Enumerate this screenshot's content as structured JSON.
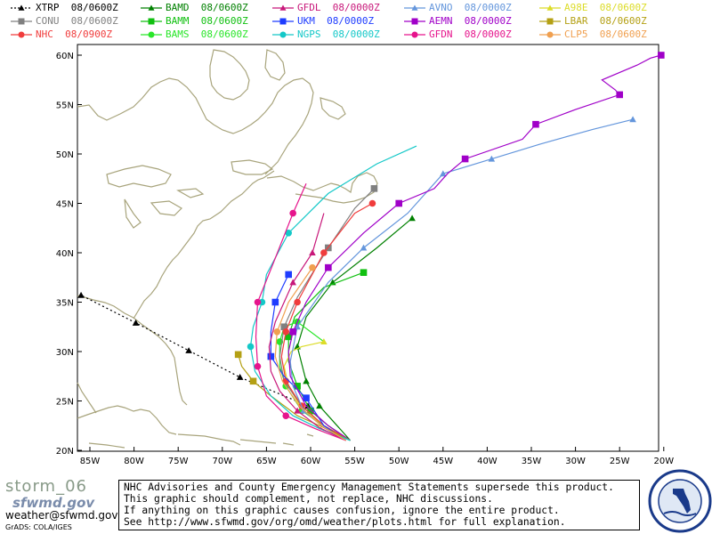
{
  "legend": [
    {
      "label": "XTRP",
      "time": "08/0600Z",
      "color": "#000000",
      "marker": "triangle",
      "dashed": true
    },
    {
      "label": "BAMD",
      "time": "08/0600Z",
      "color": "#008000",
      "marker": "triangle",
      "dashed": false
    },
    {
      "label": "GFDL",
      "time": "08/0000Z",
      "color": "#c8187a",
      "marker": "triangle",
      "dashed": false
    },
    {
      "label": "AVNO",
      "time": "08/0000Z",
      "color": "#6496dc",
      "marker": "triangle",
      "dashed": false
    },
    {
      "label": "A98E",
      "time": "08/0600Z",
      "color": "#dcdc28",
      "marker": "triangle",
      "dashed": false
    },
    {
      "label": "CONU",
      "time": "08/0600Z",
      "color": "#808080",
      "marker": "square",
      "dashed": false
    },
    {
      "label": "BAMM",
      "time": "08/0600Z",
      "color": "#10c010",
      "marker": "square",
      "dashed": false
    },
    {
      "label": "UKM",
      "time": "08/0000Z",
      "color": "#1e3cff",
      "marker": "square",
      "dashed": false
    },
    {
      "label": "AEMN",
      "time": "08/0000Z",
      "color": "#a000c8",
      "marker": "square",
      "dashed": false
    },
    {
      "label": "LBAR",
      "time": "08/0600Z",
      "color": "#b4a014",
      "marker": "square",
      "dashed": false
    },
    {
      "label": "NHC",
      "time": "08/0900Z",
      "color": "#f03c3c",
      "marker": "circle",
      "dashed": false
    },
    {
      "label": "BAMS",
      "time": "08/0600Z",
      "color": "#28e628",
      "marker": "circle",
      "dashed": false
    },
    {
      "label": "NGPS",
      "time": "08/0000Z",
      "color": "#14c8c8",
      "marker": "circle",
      "dashed": false
    },
    {
      "label": "GFDN",
      "time": "08/0000Z",
      "color": "#e6148c",
      "marker": "circle",
      "dashed": false
    },
    {
      "label": "CLP5",
      "time": "08/0600Z",
      "color": "#f0a050",
      "marker": "circle",
      "dashed": false
    }
  ],
  "axes": {
    "lat_ticks": [
      "20N",
      "25N",
      "30N",
      "35N",
      "40N",
      "45N",
      "50N",
      "55N",
      "60N"
    ],
    "lon_ticks": [
      "85W",
      "80W",
      "75W",
      "70W",
      "65W",
      "60W",
      "55W",
      "50W",
      "45W",
      "40W",
      "35W",
      "30W",
      "25W",
      "20W"
    ],
    "lat_range": [
      20,
      61
    ],
    "lon_range": [
      -87,
      -19.5
    ]
  },
  "map_colors": {
    "land": "#a8a47c",
    "axes": "#000000"
  },
  "tracks": [
    {
      "model": "XTRP",
      "color": "#000000",
      "marker": "triangle",
      "dashed": true,
      "pts": [
        [
          -60.3,
          24.5
        ],
        [
          -68,
          27.4
        ],
        [
          -73.8,
          30.1
        ],
        [
          -79.8,
          32.9
        ],
        [
          -86,
          35.7
        ]
      ],
      "marked": [
        1,
        1,
        1,
        1,
        1
      ]
    },
    {
      "model": "BAMD",
      "color": "#008000",
      "pts": [
        [
          -55.5,
          21
        ],
        [
          -57,
          22.5
        ],
        [
          -59,
          24.5
        ],
        [
          -60.5,
          27
        ],
        [
          -61.5,
          30.5
        ],
        [
          -60.5,
          33.5
        ],
        [
          -57.5,
          37
        ],
        [
          -52.5,
          40.5
        ],
        [
          -48.5,
          43.5
        ]
      ],
      "marked": [
        0,
        0,
        1,
        1,
        1,
        0,
        1,
        0,
        1
      ]
    },
    {
      "model": "BAMM",
      "color": "#10c010",
      "pts": [
        [
          -55.5,
          21
        ],
        [
          -58,
          22.5
        ],
        [
          -60,
          24
        ],
        [
          -61.5,
          26.5
        ],
        [
          -62.5,
          29
        ],
        [
          -62.5,
          31.5
        ],
        [
          -61.8,
          33.5
        ],
        [
          -58.5,
          36.5
        ],
        [
          -54,
          38
        ]
      ],
      "marked": [
        0,
        0,
        1,
        1,
        0,
        1,
        0,
        0,
        1
      ]
    },
    {
      "model": "BAMS",
      "color": "#28e628",
      "pts": [
        [
          -55.5,
          21
        ],
        [
          -58.5,
          22.5
        ],
        [
          -61,
          24
        ],
        [
          -62.8,
          26.5
        ],
        [
          -63.5,
          28.5
        ],
        [
          -63.5,
          31
        ],
        [
          -63,
          32.5
        ],
        [
          -61.5,
          33
        ],
        [
          -58.5,
          31
        ]
      ],
      "marked": [
        0,
        0,
        1,
        1,
        0,
        1,
        0,
        1,
        0
      ]
    },
    {
      "model": "A98E",
      "color": "#dcdc28",
      "pts": [
        [
          -55.5,
          21
        ],
        [
          -58.5,
          22.5
        ],
        [
          -61,
          24.2
        ],
        [
          -62.5,
          26.5
        ],
        [
          -63,
          28.5
        ],
        [
          -62.2,
          30
        ],
        [
          -61,
          30.5
        ],
        [
          -58.5,
          31
        ]
      ],
      "marked": [
        0,
        0,
        0,
        0,
        0,
        0,
        0,
        1
      ]
    },
    {
      "model": "CONU",
      "color": "#808080",
      "pts": [
        [
          -55.5,
          21
        ],
        [
          -58.5,
          22.5
        ],
        [
          -61,
          24.5
        ],
        [
          -63,
          27
        ],
        [
          -63.5,
          29.5
        ],
        [
          -63,
          32.5
        ],
        [
          -61.5,
          35.5
        ],
        [
          -58,
          40.5
        ],
        [
          -55,
          44.5
        ],
        [
          -52.8,
          46.5
        ]
      ],
      "marked": [
        0,
        0,
        0,
        0,
        0,
        1,
        0,
        1,
        0,
        1
      ]
    },
    {
      "model": "NHC",
      "color": "#f03c3c",
      "pts": [
        [
          -55.5,
          21
        ],
        [
          -58.5,
          22.5
        ],
        [
          -61,
          24.5
        ],
        [
          -62.8,
          27
        ],
        [
          -63.3,
          29.5
        ],
        [
          -62.8,
          32
        ],
        [
          -61.5,
          35
        ],
        [
          -58.5,
          40
        ],
        [
          -55,
          44
        ],
        [
          -53,
          45
        ]
      ],
      "marked": [
        0,
        0,
        1,
        1,
        0,
        1,
        1,
        1,
        0,
        1
      ]
    },
    {
      "model": "UKM",
      "color": "#1e3cff",
      "pts": [
        [
          -56,
          21
        ],
        [
          -58.5,
          22.5
        ],
        [
          -60.5,
          25.3
        ],
        [
          -63,
          27.5
        ],
        [
          -64.5,
          29.5
        ],
        [
          -64.5,
          32
        ],
        [
          -64,
          35
        ],
        [
          -62.5,
          37.8
        ]
      ],
      "marked": [
        0,
        0,
        1,
        0,
        1,
        0,
        1,
        1
      ]
    },
    {
      "model": "AVNO",
      "color": "#6496dc",
      "pts": [
        [
          -56,
          21
        ],
        [
          -58.5,
          22.3
        ],
        [
          -60.8,
          24
        ],
        [
          -62,
          26.5
        ],
        [
          -62.3,
          29
        ],
        [
          -61.5,
          32.5
        ],
        [
          -58,
          37
        ],
        [
          -54,
          40.5
        ],
        [
          -49,
          44
        ],
        [
          -45,
          48
        ],
        [
          -39.5,
          49.5
        ],
        [
          -34,
          51
        ],
        [
          -28,
          52.5
        ],
        [
          -23.5,
          53.5
        ]
      ],
      "marked": [
        0,
        0,
        1,
        0,
        0,
        1,
        0,
        1,
        0,
        1,
        1,
        0,
        0,
        1
      ]
    },
    {
      "model": "AEMN",
      "color": "#a000c8",
      "pts": [
        [
          -55.5,
          21
        ],
        [
          -58,
          22.5
        ],
        [
          -60.5,
          24.5
        ],
        [
          -62.3,
          27.5
        ],
        [
          -62.5,
          30
        ],
        [
          -62,
          32
        ],
        [
          -60.5,
          35
        ],
        [
          -58,
          38.5
        ],
        [
          -54,
          42
        ],
        [
          -50,
          45
        ],
        [
          -46,
          46.5
        ],
        [
          -44.5,
          48
        ],
        [
          -42.5,
          49.5
        ],
        [
          -36,
          51.5
        ],
        [
          -34.5,
          53
        ],
        [
          -30,
          54.5
        ],
        [
          -25,
          56
        ],
        [
          -25.5,
          56.5
        ],
        [
          -27,
          57.5
        ],
        [
          -23,
          59
        ],
        [
          -21.5,
          59.7
        ],
        [
          -20.3,
          60
        ]
      ],
      "marked": [
        0,
        0,
        0,
        0,
        0,
        1,
        0,
        1,
        0,
        1,
        0,
        0,
        1,
        0,
        1,
        0,
        1,
        0,
        0,
        0,
        0,
        1
      ]
    },
    {
      "model": "LBAR",
      "color": "#b4a014",
      "pts": [
        [
          -55.5,
          21
        ],
        [
          -58.5,
          22.3
        ],
        [
          -61.5,
          23.5
        ],
        [
          -64.5,
          25.5
        ],
        [
          -66.5,
          27
        ],
        [
          -67.8,
          28.5
        ],
        [
          -68.2,
          29.7
        ]
      ],
      "marked": [
        0,
        0,
        0,
        0,
        1,
        0,
        1
      ]
    },
    {
      "model": "NGPS",
      "color": "#14c8c8",
      "pts": [
        [
          -55.5,
          21
        ],
        [
          -59,
          22.2
        ],
        [
          -62,
          23.5
        ],
        [
          -64.5,
          25.5
        ],
        [
          -66.3,
          28
        ],
        [
          -66.8,
          30.5
        ],
        [
          -66.5,
          32.5
        ],
        [
          -65.5,
          35
        ],
        [
          -65,
          37.8
        ],
        [
          -62.5,
          42
        ],
        [
          -58,
          46
        ],
        [
          -52.5,
          49
        ],
        [
          -48,
          50.8
        ]
      ],
      "marked": [
        0,
        0,
        0,
        0,
        0,
        1,
        0,
        1,
        0,
        1,
        0,
        0,
        0
      ]
    },
    {
      "model": "GFDL",
      "color": "#c8187a",
      "pts": [
        [
          -56,
          21
        ],
        [
          -59,
          22.3
        ],
        [
          -61.5,
          24
        ],
        [
          -63.5,
          26
        ],
        [
          -64.5,
          28
        ],
        [
          -64.7,
          30.5
        ],
        [
          -64,
          33
        ],
        [
          -62,
          37
        ],
        [
          -59.8,
          40
        ],
        [
          -58.5,
          44
        ]
      ],
      "marked": [
        0,
        0,
        1,
        0,
        0,
        0,
        0,
        1,
        1,
        0
      ]
    },
    {
      "model": "GFDN",
      "color": "#e6148c",
      "pts": [
        [
          -56,
          21
        ],
        [
          -59.5,
          22.2
        ],
        [
          -62.8,
          23.5
        ],
        [
          -65,
          25.5
        ],
        [
          -66,
          28.5
        ],
        [
          -66.2,
          31.5
        ],
        [
          -66,
          35
        ],
        [
          -64.2,
          39
        ],
        [
          -62,
          44
        ],
        [
          -60.5,
          47
        ]
      ],
      "marked": [
        0,
        0,
        1,
        0,
        1,
        0,
        1,
        0,
        1,
        0
      ]
    },
    {
      "model": "CLP5",
      "color": "#f0a050",
      "pts": [
        [
          -56,
          21
        ],
        [
          -58.8,
          22.5
        ],
        [
          -61.3,
          24.5
        ],
        [
          -63.2,
          27
        ],
        [
          -64,
          29.5
        ],
        [
          -63.8,
          32
        ],
        [
          -62.5,
          35
        ],
        [
          -59.8,
          38.5
        ]
      ],
      "marked": [
        0,
        0,
        0,
        0,
        0,
        1,
        0,
        1
      ]
    }
  ],
  "footer": {
    "brand_title": "storm_06",
    "brand_site": "sfwmd.gov",
    "brand_email": "weather@sfwmd.gov",
    "brand_grads": "GrADS: COLA/IGES",
    "disclaimer_lines": [
      "NHC Advisories and County Emergency Management Statements supersede this product.",
      "This graphic should complement, not replace, NHC discussions.",
      "If anything on this graphic causes confusion, ignore the entire product.",
      "See  http://www.sfwmd.gov/org/omd/weather/plots.html  for full explanation."
    ],
    "seal_text": "SOUTH FLORIDA WATER MANAGEMENT DISTRICT"
  }
}
